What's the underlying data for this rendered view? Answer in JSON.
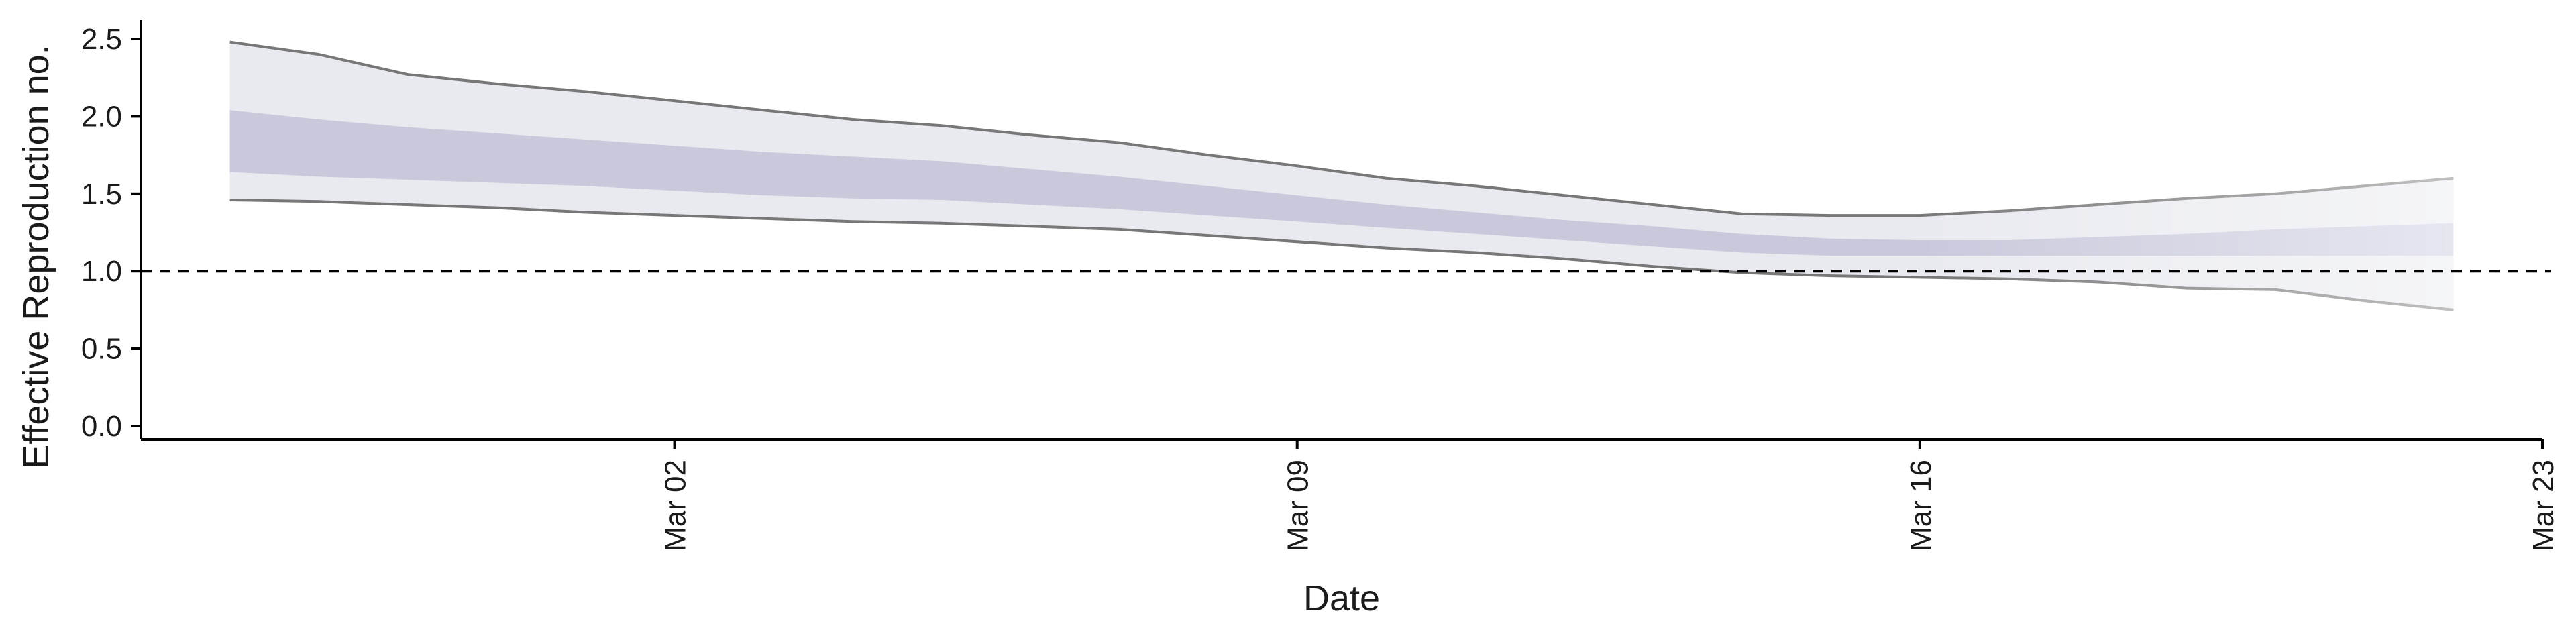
{
  "chart_data": {
    "type": "area",
    "xlabel": "Date",
    "ylabel": "Effective Reproduction no.",
    "ylim": [
      0,
      2.5
    ],
    "yticks": [
      0.0,
      0.5,
      1.0,
      1.5,
      2.0,
      2.5
    ],
    "ytick_labels": [
      "0.0",
      "0.5",
      "1.0",
      "1.5",
      "2.0",
      "2.5"
    ],
    "xlim": [
      "2020-02-25",
      "2020-03-23"
    ],
    "xticks": [
      "2020-03-02",
      "2020-03-09",
      "2020-03-16",
      "2020-03-23"
    ],
    "xtick_labels": [
      "Mar 02",
      "Mar 09",
      "Mar 16",
      "Mar 23"
    ],
    "reference_line": {
      "y": 1.0,
      "style": "dashed"
    },
    "x": [
      "2020-02-26",
      "2020-02-27",
      "2020-02-28",
      "2020-02-29",
      "2020-03-01",
      "2020-03-02",
      "2020-03-03",
      "2020-03-04",
      "2020-03-05",
      "2020-03-06",
      "2020-03-07",
      "2020-03-08",
      "2020-03-09",
      "2020-03-10",
      "2020-03-11",
      "2020-03-12",
      "2020-03-13",
      "2020-03-14",
      "2020-03-15",
      "2020-03-16",
      "2020-03-17",
      "2020-03-18",
      "2020-03-19",
      "2020-03-20",
      "2020-03-21",
      "2020-03-22"
    ],
    "outer_upper": [
      2.48,
      2.4,
      2.27,
      2.21,
      2.16,
      2.1,
      2.04,
      1.98,
      1.94,
      1.88,
      1.83,
      1.75,
      1.68,
      1.6,
      1.55,
      1.49,
      1.43,
      1.37,
      1.36,
      1.36,
      1.39,
      1.43,
      1.47,
      1.5,
      1.55,
      1.6
    ],
    "inner_upper": [
      2.04,
      1.98,
      1.93,
      1.89,
      1.85,
      1.81,
      1.77,
      1.74,
      1.71,
      1.66,
      1.61,
      1.55,
      1.49,
      1.43,
      1.38,
      1.33,
      1.29,
      1.24,
      1.21,
      1.2,
      1.2,
      1.22,
      1.24,
      1.27,
      1.29,
      1.31
    ],
    "inner_lower": [
      1.64,
      1.61,
      1.59,
      1.57,
      1.55,
      1.52,
      1.49,
      1.47,
      1.46,
      1.43,
      1.4,
      1.36,
      1.32,
      1.28,
      1.24,
      1.2,
      1.16,
      1.12,
      1.1,
      1.1,
      1.1,
      1.1,
      1.1,
      1.1,
      1.1,
      1.1
    ],
    "outer_lower": [
      1.46,
      1.45,
      1.43,
      1.41,
      1.38,
      1.36,
      1.34,
      1.32,
      1.31,
      1.29,
      1.27,
      1.23,
      1.19,
      1.15,
      1.12,
      1.08,
      1.03,
      0.99,
      0.97,
      0.96,
      0.95,
      0.93,
      0.89,
      0.88,
      0.81,
      0.75
    ],
    "colors": {
      "inner_band": "#c8cadc",
      "outer_band": "#e9eaf0",
      "bound_line": "#777777",
      "axis": "#000000",
      "reference_line": "#000000"
    },
    "fade_after": "2020-03-16",
    "grid": false,
    "legend": "none"
  }
}
